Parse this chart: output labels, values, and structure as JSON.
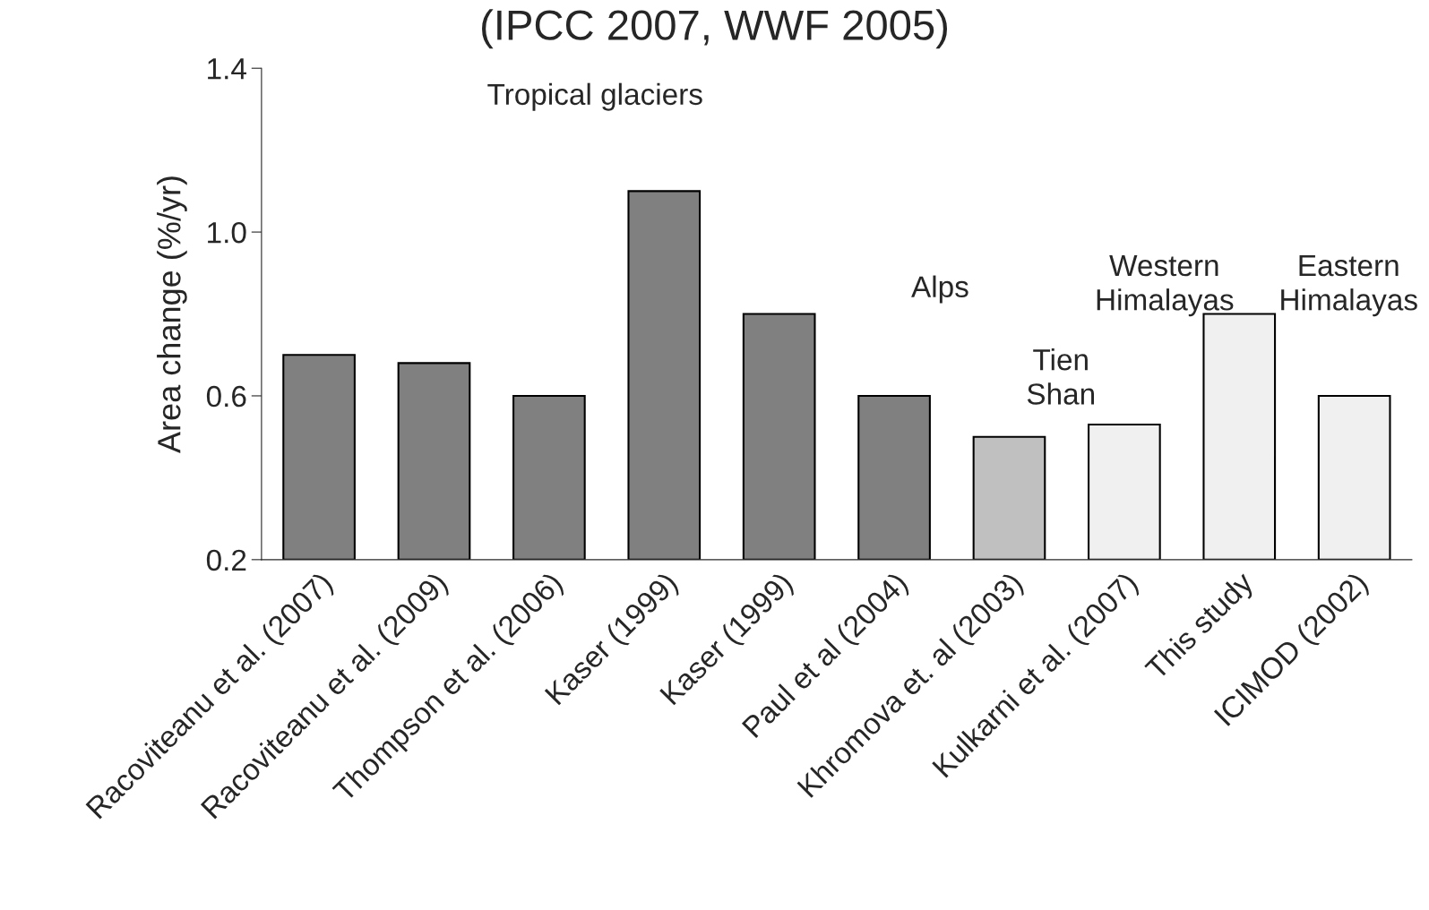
{
  "chart_data": {
    "type": "bar",
    "title": "(IPCC 2007, WWF 2005)",
    "ylabel": "Area change (%/yr)",
    "categories": [
      "Racoviteanu et al. (2007)",
      "Racoviteanu et al. (2009)",
      "Thompson et al. (2006)",
      "Kaser (1999)",
      "Kaser (1999)",
      "Paul et al (2004)",
      "Khromova et. al (2003)",
      "Kulkarni et al. (2007)",
      "This study",
      "ICIMOD (2002)"
    ],
    "values": [
      0.7,
      0.68,
      0.6,
      1.1,
      0.8,
      0.6,
      0.5,
      0.53,
      0.8,
      0.6
    ],
    "colors": [
      "#808080",
      "#808080",
      "#808080",
      "#808080",
      "#808080",
      "#808080",
      "#c0c0c0",
      "#f0f0f0",
      "#f0f0f0",
      "#f0f0f0"
    ],
    "ylim": [
      0.2,
      1.4
    ],
    "yticks": [
      0.2,
      0.6,
      {
        "value": 1.0,
        "label": "1.0"
      },
      1.4
    ],
    "grid": false,
    "legend": false,
    "annotations": [
      "Tropical glaciers",
      "Alps",
      "Tien\nShan",
      "Western\nHimalayas",
      "Eastern\nHimalayas"
    ]
  }
}
